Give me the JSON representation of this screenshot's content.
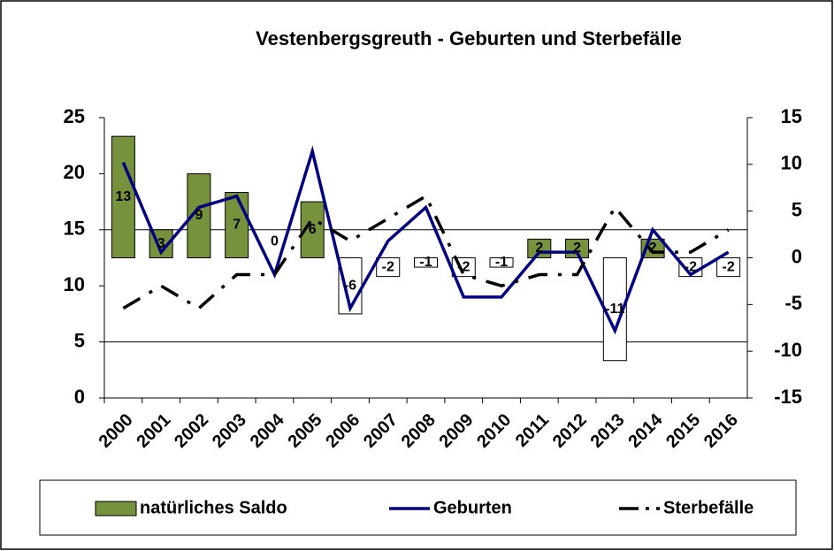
{
  "chart_data": {
    "type": "bar-line",
    "title": "Vestenbergsgreuth  - Geburten und Sterbefälle",
    "categories": [
      "2000",
      "2001",
      "2002",
      "2003",
      "2004",
      "2005",
      "2006",
      "2007",
      "2008",
      "2009",
      "2010",
      "2011",
      "2012",
      "2013",
      "2014",
      "2015",
      "2016"
    ],
    "series": [
      {
        "name": "natürliches Saldo",
        "type": "bar",
        "axis": "y2",
        "color": "#76923c",
        "negative_color": "#ffffff",
        "values": [
          13,
          3,
          9,
          7,
          0,
          6,
          -6,
          -2,
          -1,
          -2,
          -1,
          2,
          2,
          -11,
          2,
          -2,
          -2
        ]
      },
      {
        "name": "Geburten",
        "type": "line",
        "axis": "y",
        "color": "#000080",
        "dashed": false,
        "values": [
          21,
          13,
          17,
          18,
          11,
          22,
          8,
          14,
          17,
          9,
          9,
          13,
          13,
          6,
          15,
          11,
          13
        ]
      },
      {
        "name": "Sterbefälle",
        "type": "line",
        "axis": "y",
        "color": "#000000",
        "dashed": true,
        "values": [
          8,
          10,
          8,
          11,
          11,
          16,
          14,
          16,
          18,
          11,
          10,
          11,
          11,
          17,
          13,
          13,
          15
        ]
      }
    ],
    "ylim": [
      0,
      25
    ],
    "yticks": [
      0,
      5,
      10,
      15,
      20,
      25
    ],
    "y2lim": [
      -15,
      15
    ],
    "y2ticks": [
      -15,
      -10,
      -5,
      0,
      5,
      10,
      15
    ],
    "ygrid": [
      5,
      15
    ],
    "legend": "bottom"
  }
}
